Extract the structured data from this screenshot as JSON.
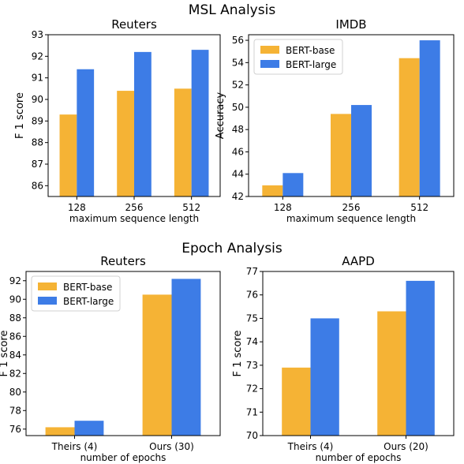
{
  "figure": {
    "section_titles": [
      "MSL Analysis",
      "Epoch Analysis"
    ]
  },
  "colors": {
    "bert_base": "#f5b335",
    "bert_large": "#3d7ce6"
  },
  "chart_data": [
    {
      "type": "bar",
      "section": "MSL Analysis",
      "title": "Reuters",
      "xlabel": "maximum sequence length",
      "ylabel": "F 1 score",
      "categories": [
        "128",
        "256",
        "512"
      ],
      "series": [
        {
          "name": "BERT-base",
          "values": [
            89.3,
            90.4,
            90.5
          ]
        },
        {
          "name": "BERT-large",
          "values": [
            91.4,
            92.2,
            92.3
          ]
        }
      ],
      "ylim": [
        85.5,
        93
      ],
      "yticks": [
        86,
        87,
        88,
        89,
        90,
        91,
        92,
        93
      ],
      "legend": null,
      "grid": false
    },
    {
      "type": "bar",
      "section": "MSL Analysis",
      "title": "IMDB",
      "xlabel": "maximum sequence length",
      "ylabel": "Accuracy",
      "categories": [
        "128",
        "256",
        "512"
      ],
      "series": [
        {
          "name": "BERT-base",
          "values": [
            43.0,
            49.4,
            54.4
          ]
        },
        {
          "name": "BERT-large",
          "values": [
            44.1,
            50.2,
            56.0
          ]
        }
      ],
      "ylim": [
        42,
        56.5
      ],
      "yticks": [
        42,
        44,
        46,
        48,
        50,
        52,
        54,
        56
      ],
      "legend": "top-left",
      "grid": false
    },
    {
      "type": "bar",
      "section": "Epoch Analysis",
      "title": "Reuters",
      "xlabel": "number of epochs",
      "ylabel": "F 1 score",
      "categories": [
        "Theirs (4)",
        "Ours (30)"
      ],
      "series": [
        {
          "name": "BERT-base",
          "values": [
            76.2,
            90.5
          ]
        },
        {
          "name": "BERT-large",
          "values": [
            76.9,
            92.2
          ]
        }
      ],
      "ylim": [
        75.3,
        93
      ],
      "yticks": [
        76,
        78,
        80,
        82,
        84,
        86,
        88,
        90,
        92
      ],
      "legend": "top-left",
      "grid": false
    },
    {
      "type": "bar",
      "section": "Epoch Analysis",
      "title": "AAPD",
      "xlabel": "number of epochs",
      "ylabel": "F 1 score",
      "categories": [
        "Theirs (4)",
        "Ours (20)"
      ],
      "series": [
        {
          "name": "BERT-base",
          "values": [
            72.9,
            75.3
          ]
        },
        {
          "name": "BERT-large",
          "values": [
            75.0,
            76.6
          ]
        }
      ],
      "ylim": [
        70,
        77
      ],
      "yticks": [
        70,
        71,
        72,
        73,
        74,
        75,
        76,
        77
      ],
      "legend": null,
      "grid": false
    }
  ]
}
